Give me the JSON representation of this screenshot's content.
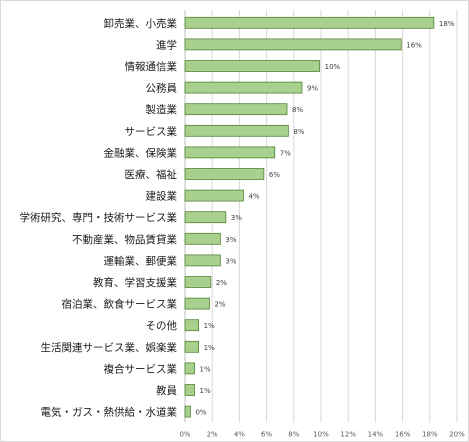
{
  "chart_data": {
    "type": "bar",
    "orientation": "horizontal",
    "title": "",
    "xlabel": "",
    "ylabel": "",
    "xlim": [
      0,
      20
    ],
    "x_ticks": [
      0,
      2,
      4,
      6,
      8,
      10,
      12,
      14,
      16,
      18,
      20
    ],
    "x_tick_labels": [
      "0%",
      "2%",
      "4%",
      "6%",
      "8%",
      "10%",
      "12%",
      "14%",
      "16%",
      "18%",
      "20%"
    ],
    "grid": true,
    "legend": "none",
    "bar_color": "#a9d18e",
    "bar_edge_color": "#548235",
    "categories": [
      "卸売業、小売業",
      "進学",
      "情報通信業",
      "公務員",
      "製造業",
      "サービス業",
      "金融業、保険業",
      "医療、福祉",
      "建設業",
      "学術研究、専門・技術サービス業",
      "不動産業、物品賃貸業",
      "運輸業、郵便業",
      "教育、学習支援業",
      "宿泊業、飲食サービス業",
      "その他",
      "生活関連サービス業、娯楽業",
      "複合サービス業",
      "教員",
      "電気・ガス・熱供給・水道業"
    ],
    "values": [
      18.3,
      15.9,
      9.9,
      8.6,
      7.5,
      7.6,
      6.6,
      5.8,
      4.3,
      3.0,
      2.6,
      2.6,
      1.9,
      1.8,
      1.0,
      1.0,
      0.7,
      0.7,
      0.4
    ],
    "value_labels": [
      "18%",
      "16%",
      "10%",
      "9%",
      "8%",
      "8%",
      "7%",
      "6%",
      "4%",
      "3%",
      "3%",
      "3%",
      "2%",
      "2%",
      "1%",
      "1%",
      "1%",
      "1%",
      "0%"
    ]
  }
}
